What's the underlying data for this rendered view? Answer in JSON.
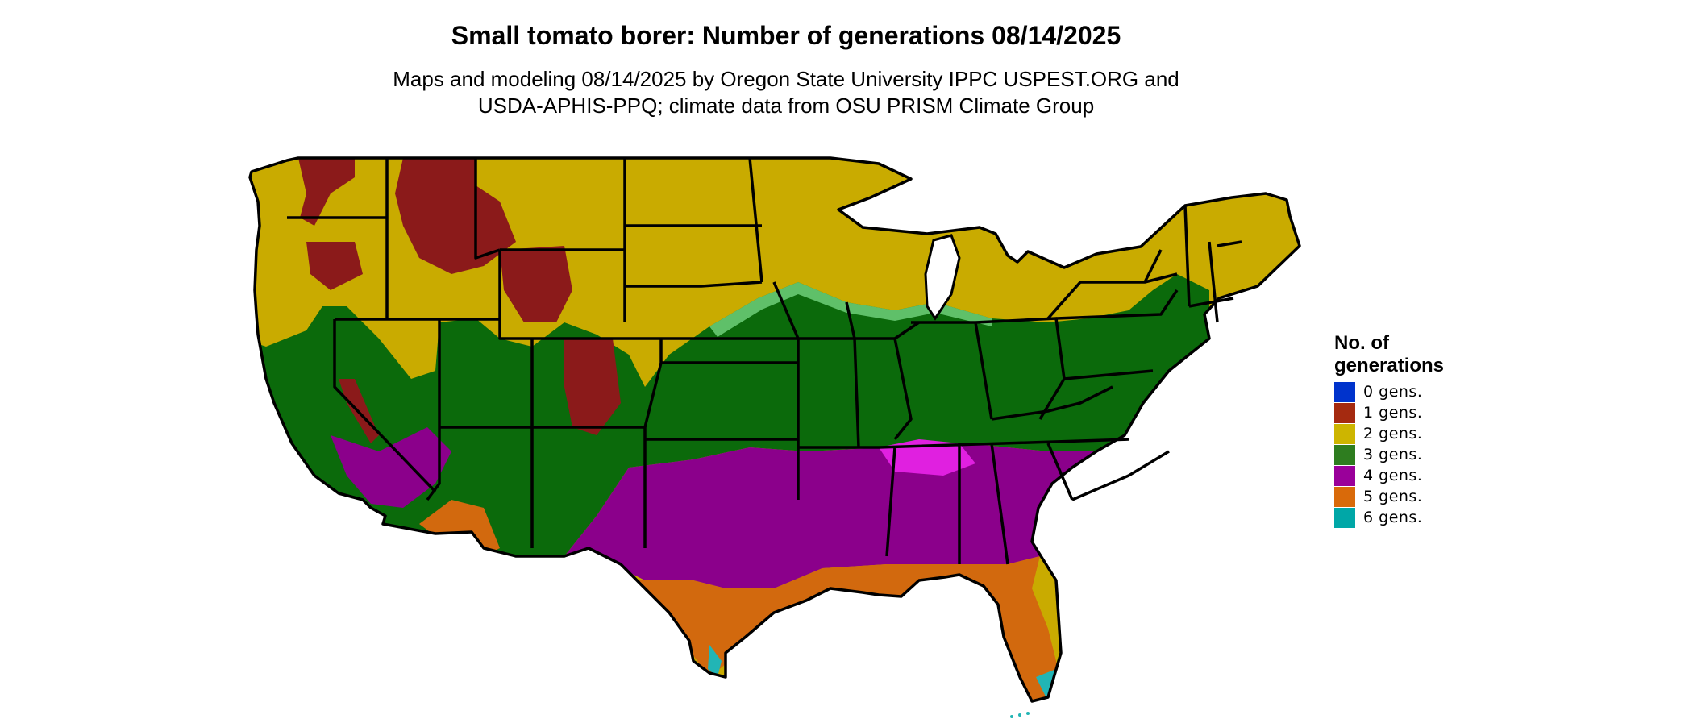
{
  "title": "Small tomato borer: Number of generations 08/14/2025",
  "subtitle_lines": [
    "Maps and modeling 08/14/2025 by Oregon State University IPPC USPEST.ORG and",
    "USDA-APHIS-PPQ; climate data from OSU PRISM Climate Group"
  ],
  "legend": {
    "title_lines": [
      "No. of",
      "generations"
    ],
    "items": [
      {
        "label": "0 gens.",
        "color": "#0033cc"
      },
      {
        "label": "1 gens.",
        "color": "#a52a10"
      },
      {
        "label": "2 gens.",
        "color": "#cdb500"
      },
      {
        "label": "3 gens.",
        "color": "#2e7d1f"
      },
      {
        "label": "4 gens.",
        "color": "#9a009a"
      },
      {
        "label": "5 gens.",
        "color": "#d96a0a"
      },
      {
        "label": "6 gens.",
        "color": "#00a7a7"
      }
    ]
  },
  "map_colors": {
    "one_gen": "#8b1a1a",
    "two_gen": "#c9ab00",
    "three_gen": "#0b6a0b",
    "three_gen_light": "#6fcf7a",
    "four_gen": "#8b008b",
    "four_gen_bright": "#e020e0",
    "five_gen": "#d2690e",
    "six_gen": "#22b5b5",
    "border": "#000000"
  }
}
